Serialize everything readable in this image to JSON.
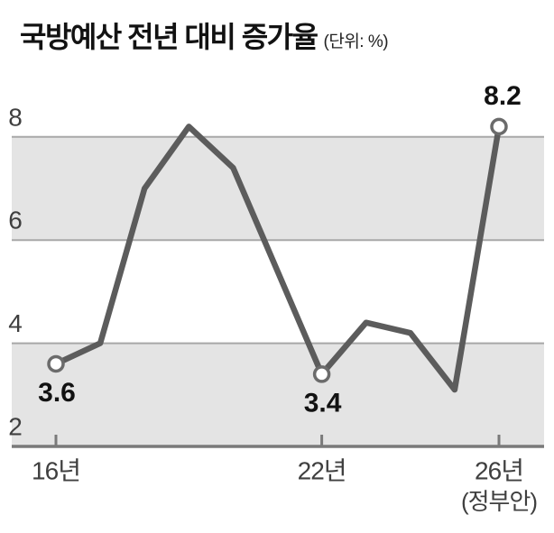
{
  "title": "국방예산 전년 대비 증가율",
  "title_unit": "(단위: %)",
  "chart_data": {
    "type": "line",
    "title": "국방예산 전년 대비 증가율",
    "unit": "%",
    "x_suffix": "년",
    "x": [
      16,
      17,
      18,
      19,
      20,
      21,
      22,
      23,
      24,
      25,
      26
    ],
    "values": [
      3.6,
      4.0,
      7.0,
      8.2,
      7.4,
      5.4,
      3.4,
      4.4,
      4.2,
      3.1,
      8.2
    ],
    "ylim": [
      2,
      8.7
    ],
    "yticks": [
      2,
      4,
      6,
      8
    ],
    "bands": [
      [
        2,
        4
      ],
      [
        6,
        8
      ]
    ],
    "grid": "horizontal-bands",
    "legend": "none",
    "x_ticks": [
      {
        "year": 16,
        "label": "16년"
      },
      {
        "year": 22,
        "label": "22년"
      },
      {
        "year": 26,
        "label": "26년",
        "sublabel": "(정부안)"
      }
    ],
    "annotations": [
      {
        "year": 16,
        "value": 3.6,
        "label": "3.6",
        "position": "below"
      },
      {
        "year": 22,
        "value": 3.4,
        "label": "3.4",
        "position": "below"
      },
      {
        "year": 26,
        "value": 8.2,
        "label": "8.2",
        "position": "above"
      }
    ]
  },
  "colors": {
    "background": "#ffffff",
    "band": "#e4e4e4",
    "gridline": "#a8a8a8",
    "axis": "#7a7a7a",
    "line": "#5c5c5c",
    "marker_fill": "#ffffff",
    "marker_stroke": "#6b6b6b",
    "text_dark": "#121212",
    "text_axis": "#3f3f3f"
  }
}
